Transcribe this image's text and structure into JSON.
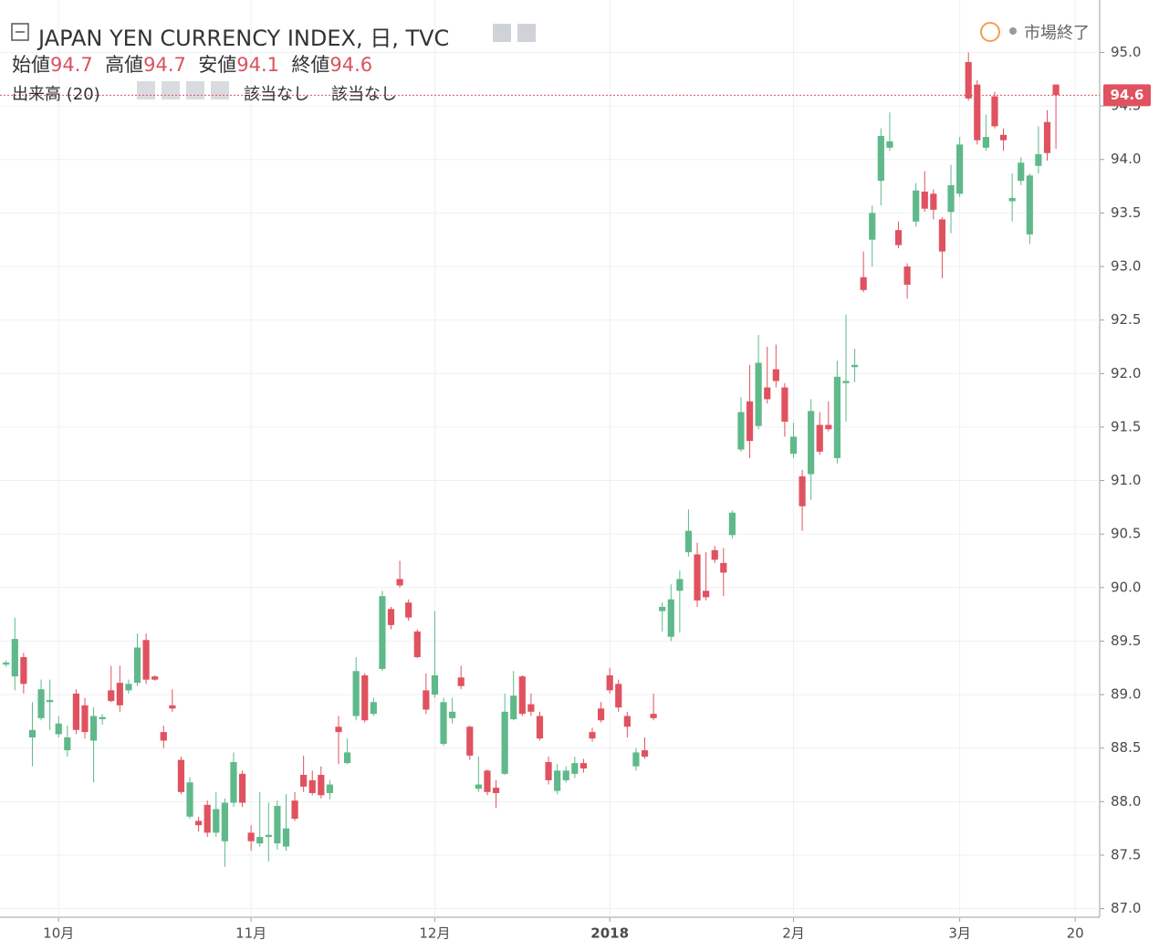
{
  "chart_data": {
    "type": "candlestick",
    "title": "JAPAN YEN CURRENCY INDEX, 日, TVC",
    "open_label": "始値",
    "high_label": "高値",
    "low_label": "安値",
    "close_label": "終値",
    "volume_label": "出来高 (20)",
    "volume_value_1": "該当なし",
    "volume_value_2": "該当なし",
    "market_status": "市場終了",
    "up_color": "#5fb98a",
    "down_color": "#e05260",
    "grid": true,
    "xlim": [
      -0.7,
      125
    ],
    "xticks": [
      {
        "value": 6,
        "label": "10月"
      },
      {
        "value": 28,
        "label": "11月"
      },
      {
        "value": 49,
        "label": "12月"
      },
      {
        "value": 69,
        "label": "2018"
      },
      {
        "value": 90,
        "label": "2月"
      },
      {
        "value": 109,
        "label": "3月"
      },
      {
        "value": 122.2,
        "label": "20"
      }
    ],
    "ylim": [
      86.92,
      95.49
    ],
    "yticks": [
      {
        "value": 87,
        "label": "87.0"
      },
      87.5,
      {
        "value": 88,
        "label": "88.0"
      },
      88.5,
      {
        "value": 89,
        "label": "89.0"
      },
      89.5,
      {
        "value": 90,
        "label": "90.0"
      },
      90.5,
      {
        "value": 91,
        "label": "91.0"
      },
      91.5,
      {
        "value": 92,
        "label": "92.0"
      },
      92.5,
      {
        "value": 93,
        "label": "93.0"
      },
      93.5,
      {
        "value": 94,
        "label": "94.0"
      },
      94.5,
      {
        "value": 95,
        "label": "95.0"
      }
    ],
    "open": [
      89.28,
      89.17,
      89.35,
      88.6,
      88.78,
      88.93,
      88.63,
      88.48,
      89.01,
      88.9,
      88.57,
      88.77,
      89.04,
      89.11,
      89.04,
      89.11,
      89.51,
      89.17,
      88.65,
      88.9,
      88.39,
      87.86,
      87.82,
      87.97,
      87.71,
      87.63,
      87.99,
      88.26,
      87.71,
      87.61,
      87.67,
      87.61,
      87.58,
      88.01,
      88.25,
      88.2,
      88.25,
      88.08,
      88.7,
      88.36,
      88.8,
      89.18,
      88.82,
      89.24,
      89.8,
      90.08,
      89.86,
      89.59,
      89.04,
      89.0,
      88.54,
      88.78,
      89.16,
      88.7,
      88.12,
      88.29,
      88.13,
      88.26,
      88.77,
      89.17,
      88.91,
      88.8,
      88.37,
      88.1,
      88.2,
      88.26,
      88.36,
      88.65,
      88.87,
      89.18,
      89.1,
      88.8,
      88.33,
      88.48,
      88.82,
      89.78,
      89.54,
      89.97,
      90.33,
      90.31,
      89.97,
      90.35,
      90.23,
      90.49,
      91.29,
      91.74,
      91.51,
      91.87,
      92.04,
      91.87,
      91.25,
      91.04,
      91.06,
      91.52,
      91.52,
      91.21,
      91.91,
      92.06,
      92.9,
      93.25,
      93.8,
      94.11,
      93.34,
      93.0,
      93.42,
      93.7,
      93.68,
      93.44,
      93.51,
      93.68,
      94.91,
      94.7,
      94.11,
      94.59,
      94.23,
      93.61,
      93.8,
      93.3,
      93.94,
      94.35,
      94.7
    ],
    "high": [
      89.32,
      89.72,
      89.39,
      88.93,
      89.14,
      89.14,
      88.8,
      88.71,
      89.05,
      88.97,
      88.88,
      88.82,
      89.27,
      89.27,
      89.14,
      89.57,
      89.57,
      89.18,
      88.71,
      89.05,
      88.42,
      88.23,
      87.86,
      88.01,
      88.09,
      88.03,
      88.46,
      88.29,
      87.78,
      88.09,
      87.99,
      88.01,
      88.07,
      88.09,
      88.43,
      88.29,
      88.33,
      88.2,
      88.8,
      88.59,
      89.35,
      89.2,
      88.97,
      89.97,
      89.82,
      90.25,
      89.89,
      89.61,
      89.2,
      89.78,
      88.97,
      88.97,
      89.27,
      88.71,
      88.42,
      88.3,
      88.2,
      89.01,
      89.22,
      89.18,
      89.01,
      88.84,
      88.42,
      88.35,
      88.33,
      88.42,
      88.4,
      88.69,
      88.93,
      89.25,
      89.14,
      88.84,
      88.5,
      88.6,
      89.01,
      89.86,
      90.03,
      90.16,
      90.73,
      90.42,
      90.33,
      90.39,
      90.37,
      90.72,
      91.78,
      92.08,
      92.36,
      92.25,
      92.27,
      91.91,
      91.54,
      91.1,
      91.76,
      91.64,
      91.74,
      92.12,
      92.55,
      92.23,
      93.14,
      93.57,
      94.29,
      94.44,
      93.42,
      93.03,
      93.78,
      93.89,
      93.72,
      93.46,
      93.95,
      94.21,
      95.0,
      94.74,
      94.42,
      94.63,
      94.29,
      93.87,
      94.02,
      93.87,
      94.31,
      94.46,
      94.7
    ],
    "low": [
      89.26,
      89.04,
      89.01,
      88.33,
      88.76,
      88.67,
      88.6,
      88.42,
      88.63,
      88.59,
      88.18,
      88.72,
      88.93,
      88.84,
      89.01,
      89.08,
      89.1,
      89.13,
      88.5,
      88.84,
      88.07,
      87.84,
      87.72,
      87.67,
      87.67,
      87.39,
      87.95,
      87.95,
      87.54,
      87.58,
      87.44,
      87.55,
      87.54,
      87.82,
      88.09,
      88.06,
      88.03,
      88.02,
      88.35,
      88.35,
      88.76,
      88.74,
      88.8,
      89.22,
      89.61,
      90.0,
      89.69,
      89.34,
      88.82,
      88.97,
      88.52,
      88.73,
      89.05,
      88.39,
      88.09,
      88.06,
      87.94,
      88.25,
      88.76,
      88.8,
      88.8,
      88.57,
      88.16,
      88.07,
      88.18,
      88.22,
      88.27,
      88.56,
      88.74,
      89.01,
      88.84,
      88.6,
      88.29,
      88.4,
      88.76,
      89.59,
      89.5,
      89.58,
      90.29,
      89.82,
      89.88,
      90.23,
      89.92,
      90.46,
      91.27,
      91.21,
      91.48,
      91.72,
      91.87,
      91.41,
      91.21,
      90.53,
      90.82,
      91.24,
      91.46,
      91.16,
      91.55,
      91.92,
      92.76,
      93.0,
      93.57,
      94.08,
      93.17,
      92.7,
      93.37,
      93.51,
      93.44,
      92.89,
      93.31,
      93.65,
      94.55,
      94.14,
      94.08,
      94.29,
      94.08,
      93.42,
      93.76,
      93.21,
      93.87,
      93.99,
      94.1
    ],
    "close": [
      89.3,
      89.52,
      89.1,
      88.67,
      89.05,
      88.95,
      88.73,
      88.6,
      88.67,
      88.65,
      88.8,
      88.79,
      88.94,
      88.9,
      89.1,
      89.44,
      89.14,
      89.14,
      88.57,
      88.87,
      88.09,
      88.18,
      87.78,
      87.71,
      87.93,
      87.99,
      88.37,
      87.99,
      87.63,
      87.67,
      87.69,
      87.96,
      87.75,
      87.84,
      88.14,
      88.08,
      88.06,
      88.16,
      88.65,
      88.46,
      89.22,
      88.76,
      88.93,
      89.92,
      89.65,
      90.02,
      89.72,
      89.35,
      88.86,
      89.18,
      88.93,
      88.84,
      89.08,
      88.43,
      88.16,
      88.09,
      88.08,
      88.84,
      88.99,
      88.82,
      88.84,
      88.59,
      88.2,
      88.29,
      88.29,
      88.36,
      88.31,
      88.59,
      88.76,
      89.04,
      88.88,
      88.7,
      88.46,
      88.42,
      88.78,
      89.82,
      89.89,
      90.08,
      90.53,
      89.88,
      89.91,
      90.26,
      90.14,
      90.7,
      91.64,
      91.37,
      92.1,
      91.76,
      91.93,
      91.55,
      91.41,
      90.76,
      91.65,
      91.27,
      91.48,
      91.97,
      91.93,
      92.08,
      92.78,
      93.5,
      94.22,
      94.17,
      93.2,
      92.83,
      93.71,
      93.54,
      93.53,
      93.14,
      93.76,
      94.14,
      94.57,
      94.18,
      94.21,
      94.31,
      94.18,
      93.64,
      93.97,
      93.85,
      94.05,
      94.06,
      94.6
    ]
  }
}
